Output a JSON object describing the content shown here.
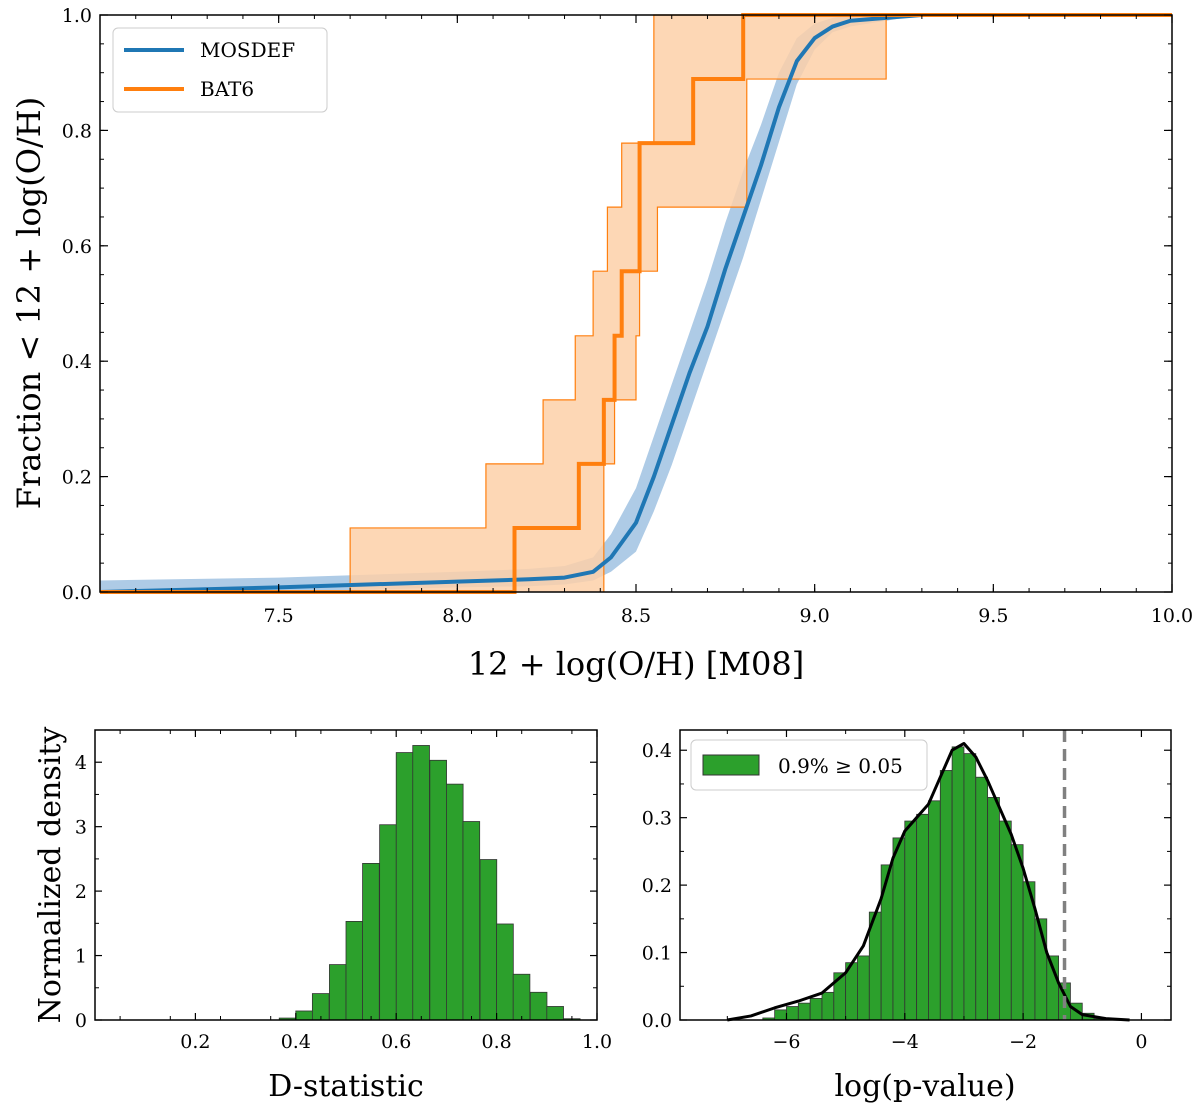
{
  "chart_data": [
    {
      "type": "line",
      "xlabel": "12 + log(O/H) [M08]",
      "ylabel": "Fraction < 12 + log(O/H)",
      "xlim": [
        7.0,
        10.0
      ],
      "ylim": [
        0.0,
        1.0
      ],
      "xticks": [
        "7.5",
        "8.0",
        "8.5",
        "9.0",
        "9.5",
        "10.0"
      ],
      "yticks": [
        "0.0",
        "0.2",
        "0.4",
        "0.6",
        "0.8",
        "1.0"
      ],
      "legend_position": "top-left",
      "series": [
        {
          "name": "MOSDEF",
          "color": "#1f77b4",
          "band_color": "#aecbe6",
          "x": [
            7.0,
            7.5,
            8.0,
            8.2,
            8.3,
            8.38,
            8.43,
            8.5,
            8.55,
            8.6,
            8.65,
            8.7,
            8.75,
            8.8,
            8.85,
            8.9,
            8.95,
            9.0,
            9.05,
            9.1,
            9.2,
            9.3,
            10.0
          ],
          "y": [
            0.0,
            0.008,
            0.018,
            0.022,
            0.025,
            0.035,
            0.06,
            0.12,
            0.2,
            0.29,
            0.38,
            0.46,
            0.56,
            0.65,
            0.74,
            0.84,
            0.92,
            0.96,
            0.98,
            0.99,
            0.995,
            1.0,
            1.0
          ],
          "lower": [
            0.0,
            0.0,
            0.008,
            0.01,
            0.013,
            0.02,
            0.035,
            0.07,
            0.14,
            0.22,
            0.31,
            0.4,
            0.49,
            0.58,
            0.68,
            0.78,
            0.88,
            0.94,
            0.97,
            0.98,
            0.99,
            1.0,
            1.0
          ],
          "upper": [
            0.02,
            0.025,
            0.035,
            0.04,
            0.045,
            0.06,
            0.1,
            0.18,
            0.27,
            0.36,
            0.45,
            0.54,
            0.64,
            0.73,
            0.81,
            0.9,
            0.96,
            0.985,
            0.995,
            1.0,
            1.0,
            1.0,
            1.0
          ]
        },
        {
          "name": "BAT6",
          "color": "#ff7f0e",
          "band_color": "#fdd0a8",
          "step_x": [
            8.16,
            8.34,
            8.41,
            8.44,
            8.46,
            8.51,
            8.66,
            8.8
          ],
          "step_y": [
            0.111,
            0.222,
            0.333,
            0.444,
            0.556,
            0.778,
            0.889,
            1.0
          ],
          "upper_x": [
            7.7,
            8.08,
            8.24,
            8.33,
            8.38,
            8.42,
            8.46,
            8.55
          ],
          "upper_y": [
            0.111,
            0.222,
            0.333,
            0.444,
            0.556,
            0.667,
            0.778,
            1.0
          ],
          "lower_x": [
            8.41,
            8.44,
            8.5,
            8.51,
            8.56,
            8.81,
            9.2
          ],
          "lower_y": [
            0.222,
            0.333,
            0.444,
            0.556,
            0.667,
            0.889,
            1.0
          ]
        }
      ]
    },
    {
      "type": "bar",
      "xlabel": "D-statistic",
      "ylabel": "Normalized density",
      "xlim": [
        0.0,
        1.0
      ],
      "ylim": [
        0.0,
        4.5
      ],
      "xticks": [
        "0.2",
        "0.4",
        "0.6",
        "0.8",
        "1.0"
      ],
      "yticks": [
        "0",
        "1",
        "2",
        "3",
        "4"
      ],
      "color": "#2ca02c",
      "bin_width": 0.0333,
      "bin_starts": [
        0.367,
        0.4,
        0.433,
        0.467,
        0.5,
        0.533,
        0.567,
        0.6,
        0.633,
        0.667,
        0.7,
        0.733,
        0.767,
        0.8,
        0.833,
        0.867,
        0.9,
        0.933
      ],
      "values": [
        0.03,
        0.14,
        0.41,
        0.86,
        1.53,
        2.43,
        3.03,
        4.15,
        4.26,
        4.03,
        3.66,
        3.08,
        2.49,
        1.49,
        0.71,
        0.43,
        0.21,
        0.02
      ]
    },
    {
      "type": "bar",
      "xlabel": "log(p-value)",
      "ylabel": "",
      "xlim": [
        -7.8,
        0.5
      ],
      "ylim": [
        0.0,
        0.43
      ],
      "xticks": [
        "−6",
        "−4",
        "−2",
        "0"
      ],
      "yticks": [
        "0.0",
        "0.1",
        "0.2",
        "0.3",
        "0.4"
      ],
      "color": "#2ca02c",
      "legend_label": "0.9% ≥ 0.05",
      "legend_position": "top-left",
      "threshold": -1.3,
      "bin_width": 0.2,
      "bin_starts": [
        -6.4,
        -6.2,
        -6.0,
        -5.8,
        -5.6,
        -5.4,
        -5.2,
        -5.0,
        -4.8,
        -4.6,
        -4.4,
        -4.2,
        -4.0,
        -3.8,
        -3.6,
        -3.4,
        -3.2,
        -3.0,
        -2.8,
        -2.6,
        -2.4,
        -2.2,
        -2.0,
        -1.8,
        -1.6,
        -1.4,
        -1.2,
        -1.0,
        -0.8
      ],
      "values": [
        0.003,
        0.015,
        0.02,
        0.025,
        0.032,
        0.041,
        0.07,
        0.085,
        0.095,
        0.16,
        0.23,
        0.27,
        0.295,
        0.305,
        0.325,
        0.37,
        0.405,
        0.395,
        0.36,
        0.33,
        0.295,
        0.26,
        0.205,
        0.15,
        0.095,
        0.055,
        0.025,
        0.01,
        0.002
      ],
      "kde_x": [
        -7.0,
        -6.6,
        -6.2,
        -5.8,
        -5.4,
        -5.0,
        -4.7,
        -4.4,
        -4.2,
        -4.0,
        -3.8,
        -3.6,
        -3.4,
        -3.2,
        -3.0,
        -2.8,
        -2.6,
        -2.4,
        -2.2,
        -2.0,
        -1.8,
        -1.6,
        -1.4,
        -1.2,
        -1.0,
        -0.6,
        -0.2
      ],
      "kde_y": [
        0.0,
        0.006,
        0.018,
        0.028,
        0.04,
        0.07,
        0.11,
        0.18,
        0.24,
        0.28,
        0.3,
        0.32,
        0.36,
        0.4,
        0.41,
        0.39,
        0.355,
        0.315,
        0.275,
        0.225,
        0.165,
        0.1,
        0.055,
        0.02,
        0.008,
        0.002,
        0.0
      ]
    }
  ]
}
